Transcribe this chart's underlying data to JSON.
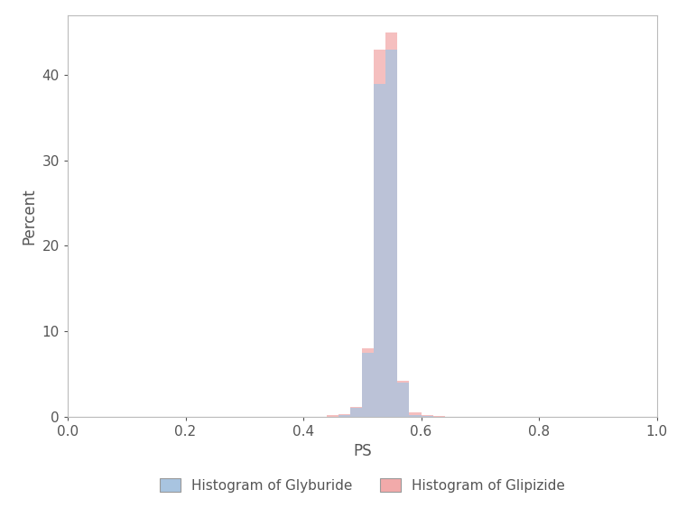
{
  "xlabel": "PS",
  "ylabel": "Percent",
  "xlim": [
    0.0,
    1.0
  ],
  "ylim": [
    0,
    47
  ],
  "xticks": [
    0.0,
    0.2,
    0.4,
    0.6,
    0.8,
    1.0
  ],
  "yticks": [
    0,
    10,
    20,
    30,
    40
  ],
  "bin_edges": [
    0.44,
    0.46,
    0.48,
    0.5,
    0.52,
    0.54,
    0.56,
    0.58,
    0.6,
    0.62,
    0.64,
    0.66,
    0.68,
    0.7,
    0.72,
    0.74
  ],
  "glyburide_values": [
    0.0,
    0.15,
    1.0,
    7.5,
    39.0,
    43.0,
    4.0,
    0.2,
    0.05,
    0.0,
    0.0,
    0.0,
    0.0,
    0.0,
    0.0
  ],
  "glipizide_values": [
    0.15,
    0.3,
    1.1,
    8.0,
    43.0,
    45.0,
    4.2,
    0.5,
    0.15,
    0.05,
    0.0,
    0.0,
    0.0,
    0.0,
    0.0
  ],
  "glyburide_color": "#a8c4e0",
  "glipizide_color": "#f2aaaa",
  "alpha": 0.75,
  "legend_glyburide": "Histogram of Glyburide",
  "legend_glipizide": "Histogram of Glipizide",
  "background_color": "#ffffff",
  "spine_color": "#bbbbbb",
  "tick_color": "#555555",
  "label_fontsize": 12,
  "tick_fontsize": 11,
  "legend_fontsize": 11
}
